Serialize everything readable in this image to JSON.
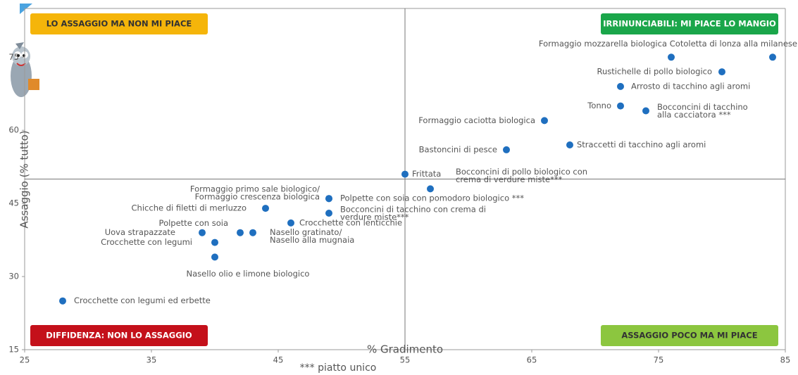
{
  "chart_data": {
    "type": "scatter",
    "xlabel": "% Gradimento",
    "ylabel": "Assaggio (% tutto)",
    "note": "*** piatto unico",
    "xlim": [
      25,
      85
    ],
    "ylim": [
      15,
      85
    ],
    "xticks": [
      25,
      35,
      45,
      55,
      65,
      75,
      85
    ],
    "yticks": [
      15,
      30,
      45,
      60,
      75
    ],
    "x_split": 55,
    "y_split": 50,
    "color": "#1f6fbf",
    "quadrants": [
      {
        "label": "LO ASSAGGIO MA NON MI PIACE",
        "color": "#f5b50a",
        "text_color": "#333333"
      },
      {
        "label": "IRRINUNCIABILI: MI PIACE LO MANGIO",
        "color": "#1aa64a",
        "text_color": "#ffffff"
      },
      {
        "label": "DIFFIDENZA: NON LO ASSAGGIO",
        "color": "#c4101a",
        "text_color": "#ffffff"
      },
      {
        "label": "ASSAGGIO POCO MA MI PIACE",
        "color": "#8cc63f",
        "text_color": "#333333"
      }
    ],
    "labels": [
      [
        "Cotoletta di lonza alla milanese"
      ],
      [
        "Formaggio mozzarella biologica"
      ],
      [
        "Rustichelle di pollo biologico"
      ],
      [
        "Arrosto di tacchino agli aromi"
      ],
      [
        "Tonno"
      ],
      [
        "Bocconcini di tacchino",
        "alla cacciatora ***"
      ],
      [
        "Formaggio caciotta biologica"
      ],
      [
        "Straccetti di tacchino agli aromi"
      ],
      [
        "Bastoncini di pesce"
      ],
      [
        "Frittata"
      ],
      [
        "Bocconcini di pollo biologico con",
        "crema di verdure miste***"
      ],
      [
        "Formaggio primo sale biologico/",
        "Formaggio crescenza biologica"
      ],
      [
        "Polpette con soia con pomodoro biologico ***"
      ],
      [
        "Chicche di filetti di merluzzo"
      ],
      [
        "Bocconcini di tacchino con crema di",
        "verdure miste***"
      ],
      [
        "Crocchette con lenticchie"
      ],
      [
        "Polpette con soia"
      ],
      [
        "Nasello gratinato/",
        "Nasello alla mugnaia"
      ],
      [
        "Uova strapazzate"
      ],
      [
        "Crocchette con legumi"
      ],
      [
        "Nasello olio e limone biologico"
      ],
      [
        "Crocchette con legumi ed erbette"
      ]
    ],
    "x": [
      84,
      76,
      80,
      72,
      72,
      74,
      66,
      68,
      63,
      55,
      57,
      49,
      49,
      44,
      49,
      46,
      42,
      43,
      39,
      40,
      40,
      28
    ],
    "values": [
      75,
      75,
      72,
      69,
      65,
      64,
      62,
      57,
      56,
      51,
      48,
      46,
      46,
      44,
      43,
      41,
      39,
      39,
      39,
      37,
      34,
      25
    ]
  }
}
